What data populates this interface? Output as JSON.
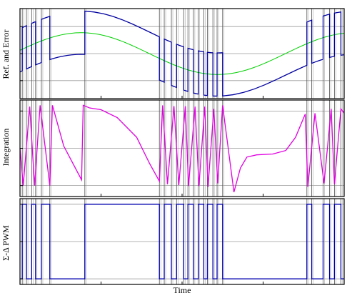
{
  "chart_data": [
    {
      "type": "line",
      "panel": "top",
      "ylabel": "Ref. and Error",
      "xlim": [
        0,
        1
      ],
      "ylim": [
        -1.25,
        1.25
      ],
      "grid": true,
      "series": [
        {
          "color": "#00d000",
          "kind": "reference",
          "amplitude": 0.58,
          "period": 0.84,
          "x_start": 0.0,
          "y_start": 0.0
        },
        {
          "color": "#0000a0",
          "kind": "error-envelope",
          "amplitude": 0.58,
          "period": 0.84,
          "offset": -0.6,
          "jump": 1.2
        }
      ]
    },
    {
      "type": "line",
      "panel": "middle",
      "ylabel": "Integration",
      "xlim": [
        0,
        1
      ],
      "ylim": [
        -1.1,
        1.1
      ],
      "grid": true,
      "series": [
        {
          "color": "#e000e0",
          "kind": "integrator-output",
          "points": [
            [
              0.0,
              0.0
            ],
            [
              0.01,
              -0.85
            ],
            [
              0.03,
              0.95
            ],
            [
              0.045,
              -0.85
            ],
            [
              0.062,
              0.98
            ],
            [
              0.092,
              -0.85
            ],
            [
              0.1,
              0.98
            ],
            [
              0.135,
              0.05
            ],
            [
              0.19,
              -0.72
            ],
            [
              0.195,
              0.98
            ],
            [
              0.215,
              0.92
            ],
            [
              0.25,
              0.88
            ],
            [
              0.3,
              0.7
            ],
            [
              0.36,
              0.25
            ],
            [
              0.4,
              -0.35
            ],
            [
              0.43,
              -0.75
            ],
            [
              0.44,
              0.98
            ],
            [
              0.455,
              -0.82
            ],
            [
              0.475,
              0.96
            ],
            [
              0.49,
              -0.84
            ],
            [
              0.51,
              0.96
            ],
            [
              0.52,
              -0.86
            ],
            [
              0.54,
              0.95
            ],
            [
              0.552,
              -0.86
            ],
            [
              0.57,
              0.95
            ],
            [
              0.58,
              -0.88
            ],
            [
              0.598,
              0.9
            ],
            [
              0.61,
              -0.8
            ],
            [
              0.625,
              0.98
            ],
            [
              0.66,
              -1.0
            ],
            [
              0.68,
              -0.45
            ],
            [
              0.7,
              -0.2
            ],
            [
              0.73,
              -0.15
            ],
            [
              0.78,
              -0.13
            ],
            [
              0.82,
              -0.05
            ],
            [
              0.85,
              0.25
            ],
            [
              0.88,
              0.78
            ],
            [
              0.888,
              -0.88
            ],
            [
              0.91,
              0.8
            ],
            [
              0.938,
              -0.8
            ],
            [
              0.96,
              0.9
            ],
            [
              0.97,
              -0.82
            ],
            [
              0.99,
              0.9
            ],
            [
              1.0,
              0.8
            ]
          ]
        }
      ]
    },
    {
      "type": "line",
      "panel": "bottom",
      "ylabel": "Σ-Δ PWM",
      "xlabel": "Time",
      "xlim": [
        0,
        1
      ],
      "ylim": [
        -1.15,
        1.15
      ],
      "grid": true,
      "series": [
        {
          "color": "#0000b0",
          "kind": "pwm",
          "edges": [
            0.007,
            0.02,
            0.036,
            0.048,
            0.066,
            0.092,
            0.2,
            0.43,
            0.445,
            0.467,
            0.483,
            0.505,
            0.518,
            0.535,
            0.55,
            0.567,
            0.578,
            0.595,
            0.608,
            0.625,
            0.885,
            0.9,
            0.935,
            0.955,
            0.97,
            0.99
          ],
          "start_level": -1
        }
      ]
    }
  ]
}
